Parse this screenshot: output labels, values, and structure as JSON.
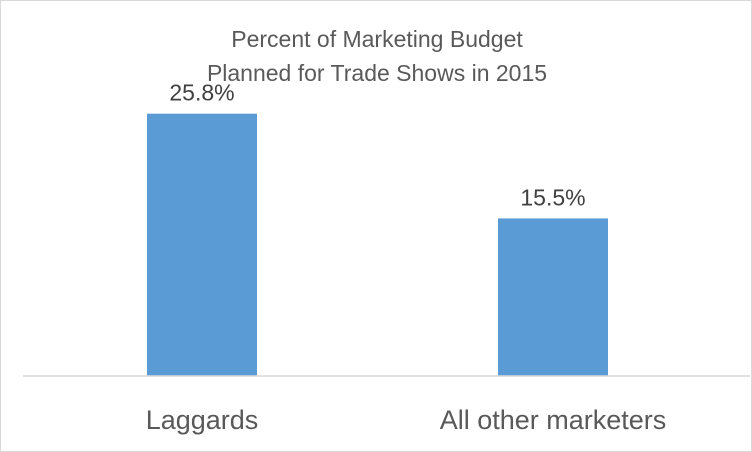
{
  "chart_data": {
    "type": "bar",
    "title_lines": [
      "Percent of Marketing Budget",
      "Planned for Trade Shows in 2015"
    ],
    "categories": [
      "Laggards",
      "All other marketers"
    ],
    "values": [
      25.8,
      15.5
    ],
    "data_labels": [
      "25.8%",
      "15.5%"
    ],
    "bar_color": "#5b9bd5",
    "xlabel": "",
    "ylabel": "",
    "ylim": [
      0,
      30
    ],
    "grid": false,
    "legend": "none"
  }
}
